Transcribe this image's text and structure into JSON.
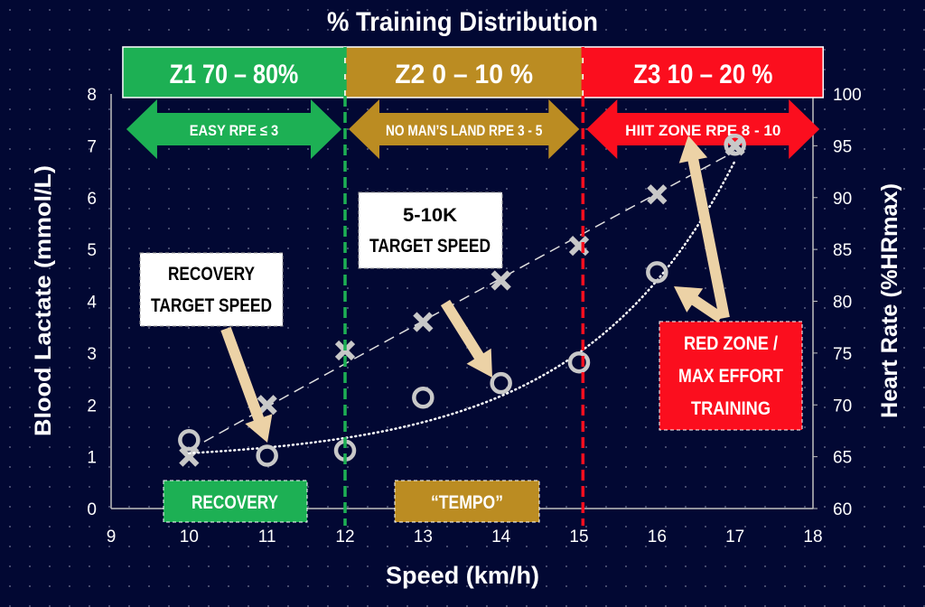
{
  "chart_data": {
    "type": "scatter",
    "title": "% Training Distribution",
    "xlabel": "Speed (km/h)",
    "ylabel": "Blood Lactate (mmol/L)",
    "y2label": "Heart Rate (%HRmax)",
    "xlim": [
      9,
      18
    ],
    "ylim": [
      0,
      8
    ],
    "y2lim": [
      60,
      100
    ],
    "xticks": [
      "9",
      "10",
      "11",
      "12",
      "13",
      "14",
      "15",
      "16",
      "17",
      "18"
    ],
    "yticks": [
      "0",
      "1",
      "2",
      "3",
      "4",
      "5",
      "6",
      "7",
      "8"
    ],
    "y2ticks": [
      "60",
      "65",
      "70",
      "75",
      "80",
      "85",
      "90",
      "95",
      "100"
    ],
    "grid": "dotted background",
    "series": [
      {
        "name": "Blood Lactate",
        "marker": "x",
        "axis": "left",
        "color": "#c8c8c8",
        "x": [
          10,
          11,
          12,
          13,
          14,
          15,
          16,
          17
        ],
        "y": [
          1.0,
          2.0,
          3.05,
          3.6,
          4.4,
          5.07,
          6.06,
          7.0
        ],
        "trendline": "dashed"
      },
      {
        "name": "Heart Rate",
        "marker": "o",
        "axis": "right",
        "color": "#c8c8c8",
        "x": [
          10,
          11,
          12,
          13,
          14,
          15,
          16,
          17
        ],
        "y": [
          66.6,
          65.1,
          65.6,
          70.7,
          72.1,
          74.1,
          82.8,
          95.1
        ],
        "trendline": "dotted"
      }
    ],
    "zones": [
      {
        "label": "Z1 70 – 80%",
        "sub": "EASY RPE ≤ 3",
        "from": 9.15,
        "to": 12,
        "color": "#1db054"
      },
      {
        "label": "Z2 0 – 10 %",
        "sub": "NO MAN’S LAND RPE 3 - 5",
        "from": 12,
        "to": 15.05,
        "color": "#bb8c22"
      },
      {
        "label": "Z3 10 – 20 %",
        "sub": "HIIT ZONE RPE  8 - 10",
        "from": 15.05,
        "to": 18.13,
        "color": "#fb0e1e"
      }
    ],
    "thresholds": [
      {
        "x": 12,
        "color": "#1db054"
      },
      {
        "x": 15.05,
        "color": "#fb0e1e"
      }
    ],
    "annotations": {
      "recovery_target": [
        "RECOVERY",
        "TARGET SPEED"
      ],
      "target_5_10k": [
        "5-10K",
        "TARGET SPEED"
      ],
      "red_zone": [
        "RED ZONE /",
        "MAX EFFORT",
        "TRAINING"
      ],
      "recovery_label": "RECOVERY",
      "tempo_label": "“TEMPO”"
    }
  }
}
